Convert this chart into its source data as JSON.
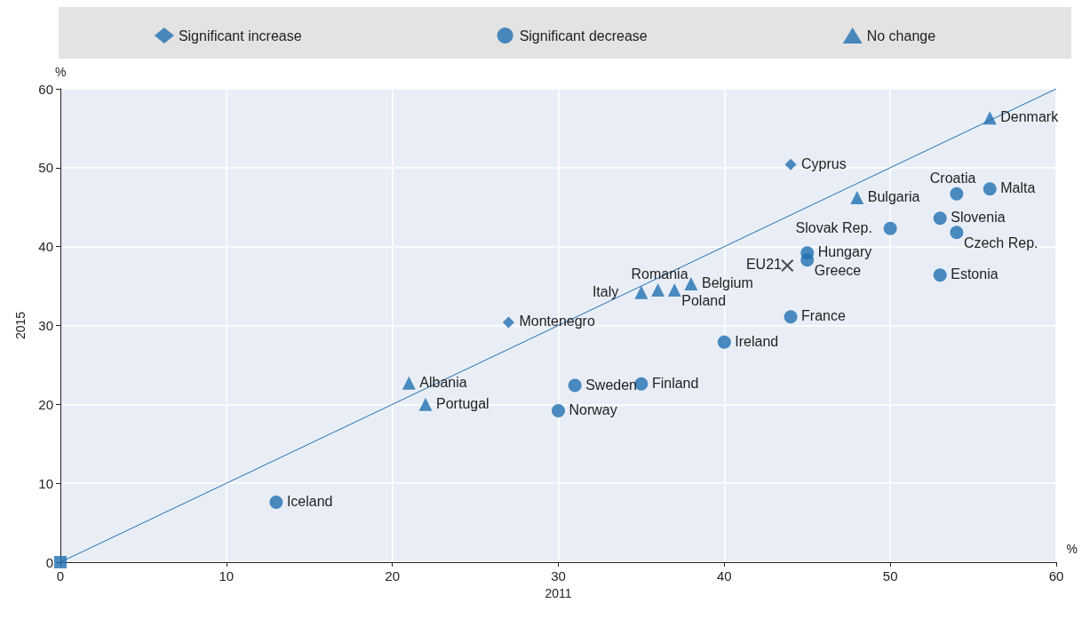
{
  "chart_data": {
    "type": "scatter",
    "xlabel": "2011",
    "ylabel": "2015",
    "xlim": [
      0,
      60
    ],
    "ylim": [
      0,
      60
    ],
    "xticks": [
      0,
      10,
      20,
      30,
      40,
      50,
      60
    ],
    "yticks": [
      0,
      10,
      20,
      30,
      40,
      50,
      60
    ],
    "grid": true,
    "legend": "top",
    "series": [
      {
        "name": "Significant increase",
        "color": "#1f6fb2",
        "marker": "diamond",
        "x": [
          44,
          27
        ],
        "values": [
          50.4,
          30.4
        ]
      },
      {
        "name": "Significant decrease",
        "color": "#1f6fb2",
        "marker": "circle",
        "x": [
          54,
          56,
          50,
          53,
          54,
          45,
          45,
          53,
          44,
          40,
          31,
          35,
          30,
          13
        ],
        "values": [
          46.7,
          47.3,
          42.3,
          43.6,
          41.8,
          39.2,
          38.3,
          36.4,
          31.1,
          27.9,
          22.4,
          22.6,
          19.2,
          7.6
        ]
      },
      {
        "name": "No change",
        "color": "#1f6fb2",
        "marker": "triangle",
        "x": [
          56,
          48,
          38,
          36,
          35,
          37,
          21,
          22
        ],
        "values": [
          56.3,
          46.2,
          35.3,
          34.5,
          34.2,
          34.5,
          22.7,
          20
        ]
      },
      {
        "color": "#222222",
        "marker": "cross",
        "x": [
          43.8
        ],
        "values": [
          37.6
        ]
      },
      {
        "color": "#1f6fb2",
        "marker": "square",
        "x": [
          0
        ],
        "values": [
          0
        ]
      },
      {
        "type": "line",
        "color": "#1f6fb2",
        "marker": "none",
        "x": [
          0,
          60
        ],
        "values": [
          0,
          60
        ]
      }
    ],
    "annotations": [
      "%",
      "%",
      {
        "text": "Denmark",
        "x": 56,
        "y": 56.3
      },
      {
        "text": "Cyprus",
        "x": 44,
        "y": 50.4
      },
      {
        "text": "Croatia",
        "x": 54,
        "y": 46.7
      },
      {
        "text": "Malta",
        "x": 56,
        "y": 47.3
      },
      {
        "text": "Bulgaria",
        "x": 48,
        "y": 46.2
      },
      {
        "text": "Slovak Rep.",
        "x": 50,
        "y": 42.3
      },
      {
        "text": "Slovenia",
        "x": 53,
        "y": 43.6
      },
      {
        "text": "Czech Rep.",
        "x": 54,
        "y": 41.8
      },
      {
        "text": "Hungary",
        "x": 45,
        "y": 39.2
      },
      {
        "text": "Greece",
        "x": 45,
        "y": 38.3
      },
      {
        "text": "EU21",
        "x": 43.8,
        "y": 37.6
      },
      {
        "text": "Estonia",
        "x": 53,
        "y": 36.4
      },
      {
        "text": "Belgium",
        "x": 38,
        "y": 35.3
      },
      {
        "text": "Romania",
        "x": 36,
        "y": 34.5
      },
      {
        "text": "Italy",
        "x": 35,
        "y": 34.2
      },
      {
        "text": "Poland",
        "x": 37,
        "y": 34.5
      },
      {
        "text": "France",
        "x": 44,
        "y": 31.1
      },
      {
        "text": "Montenegro",
        "x": 27,
        "y": 30.4
      },
      {
        "text": "Ireland",
        "x": 40,
        "y": 27.9
      },
      {
        "text": "Sweden",
        "x": 31,
        "y": 22.4
      },
      {
        "text": "Finland",
        "x": 35,
        "y": 22.6
      },
      {
        "text": "Albania",
        "x": 21,
        "y": 22.7
      },
      {
        "text": "Portugal",
        "x": 22,
        "y": 20
      },
      {
        "text": "Norway",
        "x": 30,
        "y": 19.2
      },
      {
        "text": "Iceland",
        "x": 13,
        "y": 7.6
      }
    ]
  }
}
